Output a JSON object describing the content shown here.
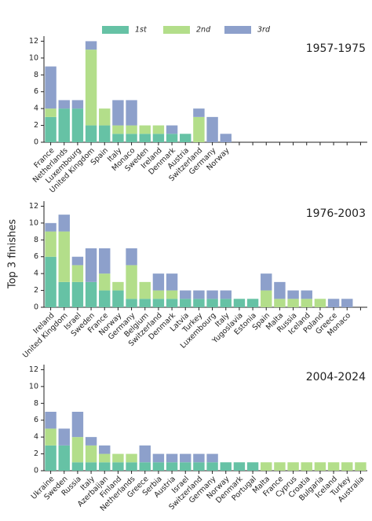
{
  "chart_data": [
    {
      "type": "bar",
      "stacked": true,
      "title": "1957-1975",
      "categories": [
        "France",
        "Netherlands",
        "Luxembourg",
        "United Kingdom",
        "Spain",
        "Italy",
        "Monaco",
        "Sweden",
        "Ireland",
        "Denmark",
        "Austria",
        "Switzerland",
        "Germany",
        "Norway",
        null,
        null,
        null,
        null,
        null,
        null,
        null,
        null,
        null,
        null
      ],
      "series": [
        {
          "name": "1st",
          "color": "#66c2a5",
          "values": [
            3,
            4,
            4,
            2,
            2,
            1,
            1,
            1,
            1,
            1,
            1,
            0,
            0,
            0,
            0,
            0,
            0,
            0,
            0,
            0,
            0,
            0,
            0,
            0
          ]
        },
        {
          "name": "2nd",
          "color": "#b3de8a",
          "values": [
            1,
            0,
            0,
            9,
            2,
            1,
            1,
            1,
            1,
            0,
            0,
            3,
            0,
            0,
            0,
            0,
            0,
            0,
            0,
            0,
            0,
            0,
            0,
            0
          ]
        },
        {
          "name": "3rd",
          "color": "#8da0cb",
          "values": [
            5,
            1,
            1,
            1,
            0,
            3,
            3,
            0,
            0,
            1,
            0,
            1,
            3,
            1,
            0,
            0,
            0,
            0,
            0,
            0,
            0,
            0,
            0,
            0
          ]
        }
      ],
      "ylim": [
        0,
        12.6
      ],
      "yticks": [
        0,
        2,
        4,
        6,
        8,
        10,
        12
      ]
    },
    {
      "type": "bar",
      "stacked": true,
      "title": "1976-2003",
      "y_label": "Top 3 finishes",
      "categories": [
        "Ireland",
        "United Kingdom",
        "Israel",
        "Sweden",
        "France",
        "Norway",
        "Germany",
        "Belgium",
        "Switzerland",
        "Denmark",
        "Latvia",
        "Turkey",
        "Luxembourg",
        "Italy",
        "Yugoslavia",
        "Estonia",
        "Spain",
        "Malta",
        "Russia",
        "Iceland",
        "Poland",
        "Greece",
        "Monaco",
        null
      ],
      "series": [
        {
          "color": "#66c2a5",
          "values": [
            6,
            3,
            3,
            3,
            2,
            2,
            1,
            1,
            1,
            1,
            1,
            1,
            1,
            1,
            1,
            1,
            0,
            0,
            0,
            0,
            0,
            0,
            0,
            0
          ]
        },
        {
          "color": "#b3de8a",
          "values": [
            3,
            6,
            2,
            0,
            2,
            1,
            4,
            2,
            1,
            1,
            0,
            0,
            0,
            0,
            0,
            0,
            2,
            1,
            1,
            1,
            1,
            0,
            0,
            0
          ]
        },
        {
          "color": "#8da0cb",
          "values": [
            1,
            2,
            1,
            4,
            3,
            0,
            2,
            0,
            2,
            2,
            1,
            1,
            1,
            1,
            0,
            0,
            2,
            2,
            1,
            1,
            0,
            1,
            1,
            0
          ]
        }
      ],
      "ylim": [
        0,
        12.6
      ],
      "yticks": [
        0,
        2,
        4,
        6,
        8,
        10,
        12
      ]
    },
    {
      "type": "bar",
      "stacked": true,
      "title": "2004-2024",
      "categories": [
        "Ukraine",
        "Sweden",
        "Russia",
        "Italy",
        "Azerbaijan",
        "Finland",
        "Netherlands",
        "Greece",
        "Serbia",
        "Austria",
        "Israel",
        "Switzerland",
        "Germany",
        "Norway",
        "Denmark",
        "Portugal",
        "Malta",
        "France",
        "Cyprus",
        "Croatia",
        "Bulgaria",
        "Iceland",
        "Turkey",
        "Australia"
      ],
      "series": [
        {
          "color": "#66c2a5",
          "values": [
            3,
            3,
            1,
            1,
            1,
            1,
            1,
            1,
            1,
            1,
            1,
            1,
            1,
            1,
            1,
            1,
            0,
            0,
            0,
            0,
            0,
            0,
            0,
            0
          ]
        },
        {
          "color": "#b3de8a",
          "values": [
            2,
            0,
            3,
            2,
            1,
            1,
            1,
            0,
            0,
            0,
            0,
            0,
            0,
            0,
            0,
            0,
            1,
            1,
            1,
            1,
            1,
            1,
            1,
            1
          ]
        },
        {
          "color": "#8da0cb",
          "values": [
            2,
            2,
            3,
            1,
            1,
            0,
            0,
            2,
            1,
            1,
            1,
            1,
            1,
            0,
            0,
            0,
            0,
            0,
            0,
            0,
            0,
            0,
            0,
            0
          ]
        }
      ],
      "ylim": [
        0,
        12.6
      ],
      "yticks": [
        0,
        2,
        4,
        6,
        8,
        10,
        12
      ]
    }
  ]
}
